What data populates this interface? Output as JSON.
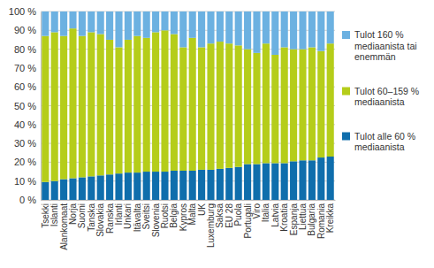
{
  "chart_data": {
    "type": "bar",
    "stacked": true,
    "grid": true,
    "legend": "right",
    "categories": [
      "Tsekki",
      "Islanti",
      "Alankomaat",
      "Norja",
      "Suomi",
      "Tanska",
      "Slovakia",
      "Ranska",
      "Irlanti",
      "Unkari",
      "Itävalta",
      "Sveitsi",
      "Slovenia",
      "Ruotsi",
      "Belgia",
      "Kypros",
      "Malta",
      "UK",
      "Luxemburg",
      "Saksa",
      "EU 28",
      "Puola",
      "Portugali",
      "Viro",
      "Italia",
      "Latvia",
      "Kroatia",
      "Espanja",
      "Liettua",
      "Bulgaria",
      "Romania",
      "Kreikka"
    ],
    "series": [
      {
        "name": "Tulot alle 60 % mediaanista",
        "color": "#0f6eac",
        "values": [
          9.5,
          10,
          11,
          11.5,
          12,
          12.5,
          13,
          13.5,
          14,
          14.5,
          14.5,
          15,
          15,
          15,
          15.5,
          15.5,
          15.5,
          16,
          16,
          16.5,
          17,
          17.5,
          19,
          19,
          19.5,
          19.5,
          19.5,
          20.5,
          21,
          21,
          22.5,
          23
        ]
      },
      {
        "name": "Tulot 60–159 % mediaanista",
        "color": "#b5cd1a",
        "values": [
          77.5,
          79,
          76,
          79.5,
          75,
          76.5,
          75,
          71.5,
          67,
          70.5,
          72.5,
          71,
          74,
          75,
          72.5,
          65.5,
          70.5,
          65,
          67,
          67.5,
          66,
          64.5,
          61,
          59,
          63.5,
          57.5,
          61.5,
          59.5,
          59,
          60,
          56.5,
          60
        ]
      },
      {
        "name": "Tulot 160 % mediaanista tai enemmän",
        "color": "#6cb1e1",
        "values": [
          13,
          11,
          13,
          9,
          13,
          11,
          12,
          15,
          19,
          15,
          13,
          14,
          11,
          10,
          12,
          19,
          14,
          19,
          17,
          16,
          17,
          18,
          20,
          22,
          17,
          23,
          19,
          20,
          20,
          19,
          21,
          17
        ]
      }
    ],
    "ylim": [
      0,
      100
    ],
    "yticks": [
      {
        "value": 0,
        "label": "0 %"
      },
      {
        "value": 10,
        "label": "10 %"
      },
      {
        "value": 20,
        "label": "20 %"
      },
      {
        "value": 30,
        "label": "30 %"
      },
      {
        "value": 40,
        "label": "40 %"
      },
      {
        "value": 50,
        "label": "50 %"
      },
      {
        "value": 60,
        "label": "60 %"
      },
      {
        "value": 70,
        "label": "70 %"
      },
      {
        "value": 80,
        "label": "80 %"
      },
      {
        "value": 90,
        "label": "90 %"
      },
      {
        "value": 100,
        "label": "100 %"
      }
    ]
  }
}
